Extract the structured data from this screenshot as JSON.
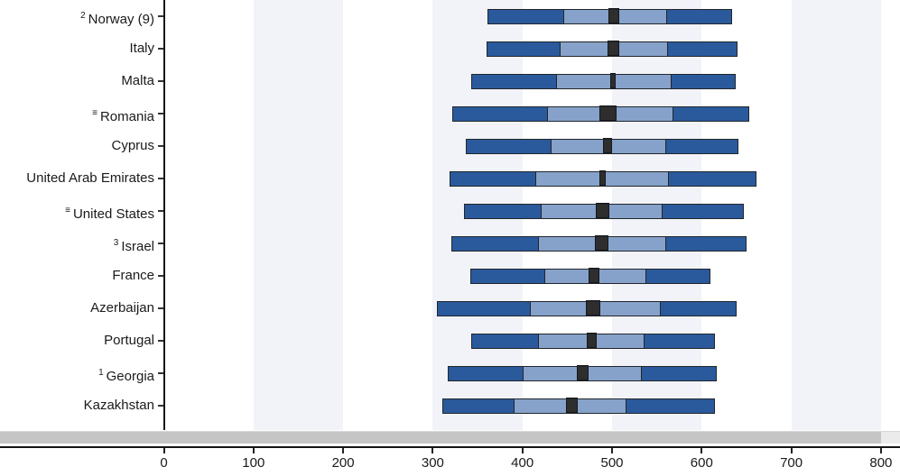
{
  "chart_data": {
    "type": "boxplot",
    "title": "",
    "xlabel": "",
    "xlim": [
      0,
      800
    ],
    "x_ticks": [
      0,
      100,
      200,
      300,
      400,
      500,
      600,
      700,
      800
    ],
    "grid_bands": [
      [
        100,
        200
      ],
      [
        300,
        400
      ],
      [
        500,
        600
      ],
      [
        700,
        800
      ]
    ],
    "series_note": "per row: 5th, 25th percentile, mean confidence interval (low/high), 75th, 95th percentile",
    "rows": [
      {
        "prefix": "2",
        "label": "Norway (9)",
        "p5": 361,
        "p25": 446,
        "ci_low": 496,
        "ci_high": 508,
        "p75": 561,
        "p95": 634
      },
      {
        "prefix": "",
        "label": "Italy",
        "p5": 360,
        "p25": 442,
        "ci_low": 495,
        "ci_high": 508,
        "p75": 562,
        "p95": 640
      },
      {
        "prefix": "",
        "label": "Malta",
        "p5": 343,
        "p25": 438,
        "ci_low": 498,
        "ci_high": 504,
        "p75": 566,
        "p95": 638
      },
      {
        "prefix": "≡",
        "label": "Romania",
        "p5": 322,
        "p25": 428,
        "ci_low": 486,
        "ci_high": 505,
        "p75": 568,
        "p95": 653
      },
      {
        "prefix": "",
        "label": "Cyprus",
        "p5": 337,
        "p25": 432,
        "ci_low": 490,
        "ci_high": 500,
        "p75": 560,
        "p95": 641
      },
      {
        "prefix": "",
        "label": "United Arab Emirates",
        "p5": 319,
        "p25": 414,
        "ci_low": 486,
        "ci_high": 493,
        "p75": 563,
        "p95": 661
      },
      {
        "prefix": "≡",
        "label": "United States",
        "p5": 335,
        "p25": 420,
        "ci_low": 482,
        "ci_high": 497,
        "p75": 556,
        "p95": 647
      },
      {
        "prefix": "3",
        "label": "Israel",
        "p5": 321,
        "p25": 417,
        "ci_low": 481,
        "ci_high": 496,
        "p75": 560,
        "p95": 650
      },
      {
        "prefix": "",
        "label": "France",
        "p5": 342,
        "p25": 424,
        "ci_low": 474,
        "ci_high": 486,
        "p75": 538,
        "p95": 610
      },
      {
        "prefix": "",
        "label": "Azerbaijan",
        "p5": 305,
        "p25": 408,
        "ci_low": 471,
        "ci_high": 487,
        "p75": 554,
        "p95": 639
      },
      {
        "prefix": "",
        "label": "Portugal",
        "p5": 343,
        "p25": 417,
        "ci_low": 472,
        "ci_high": 483,
        "p75": 536,
        "p95": 615
      },
      {
        "prefix": "1",
        "label": "Georgia",
        "p5": 317,
        "p25": 400,
        "ci_low": 461,
        "ci_high": 474,
        "p75": 533,
        "p95": 617
      },
      {
        "prefix": "",
        "label": "Kazakhstan",
        "p5": 311,
        "p25": 390,
        "ci_low": 449,
        "ci_high": 462,
        "p75": 516,
        "p95": 615
      }
    ],
    "colors": {
      "outer_segment": "#2a5a9c",
      "inner_segment": "#86a2ca",
      "mean_ci_box": "#2e2e2e",
      "bar_border": "#22262b",
      "band": "#f2f3f9",
      "axis": "#151515",
      "text": "#1a1a1a",
      "scrollbar_thumb": "#c5c5c5",
      "scrollbar_track": "#ebebeb"
    },
    "legend_position": "none",
    "grid": "vertical-bands"
  }
}
